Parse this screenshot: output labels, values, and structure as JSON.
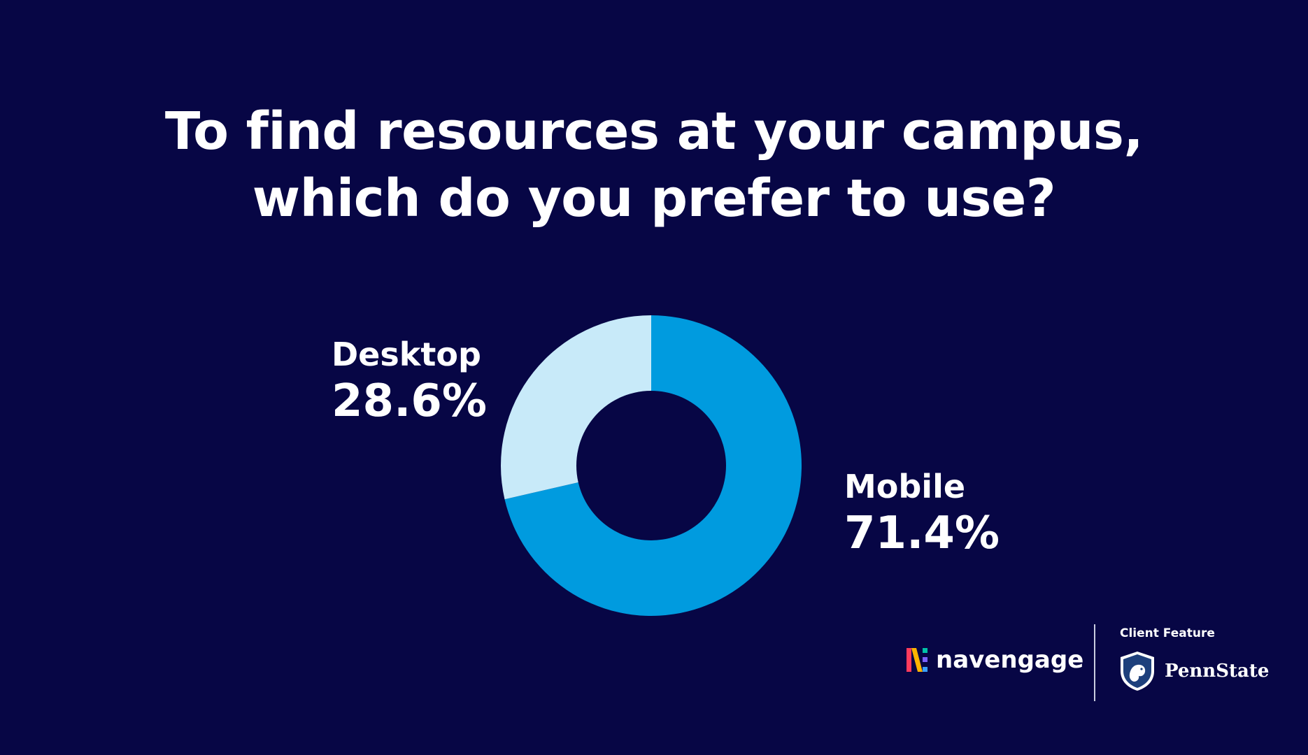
{
  "title_lines": [
    "To find resources at your campus,",
    "which do you prefer to use?"
  ],
  "chart_data": {
    "type": "pie",
    "donut": true,
    "slices": [
      {
        "label": "Mobile",
        "value": 71.4,
        "display": "71.4%",
        "color": "#009bdf"
      },
      {
        "label": "Desktop",
        "value": 28.6,
        "display": "28.6%",
        "color": "#c8eaf9"
      }
    ],
    "title": "To find resources at your campus, which do you prefer to use?"
  },
  "footer": {
    "brand_name": "navengage",
    "client_feature_label": "Client Feature",
    "partner_name": "PennState"
  },
  "colors": {
    "background": "#070645",
    "text": "#ffffff"
  }
}
